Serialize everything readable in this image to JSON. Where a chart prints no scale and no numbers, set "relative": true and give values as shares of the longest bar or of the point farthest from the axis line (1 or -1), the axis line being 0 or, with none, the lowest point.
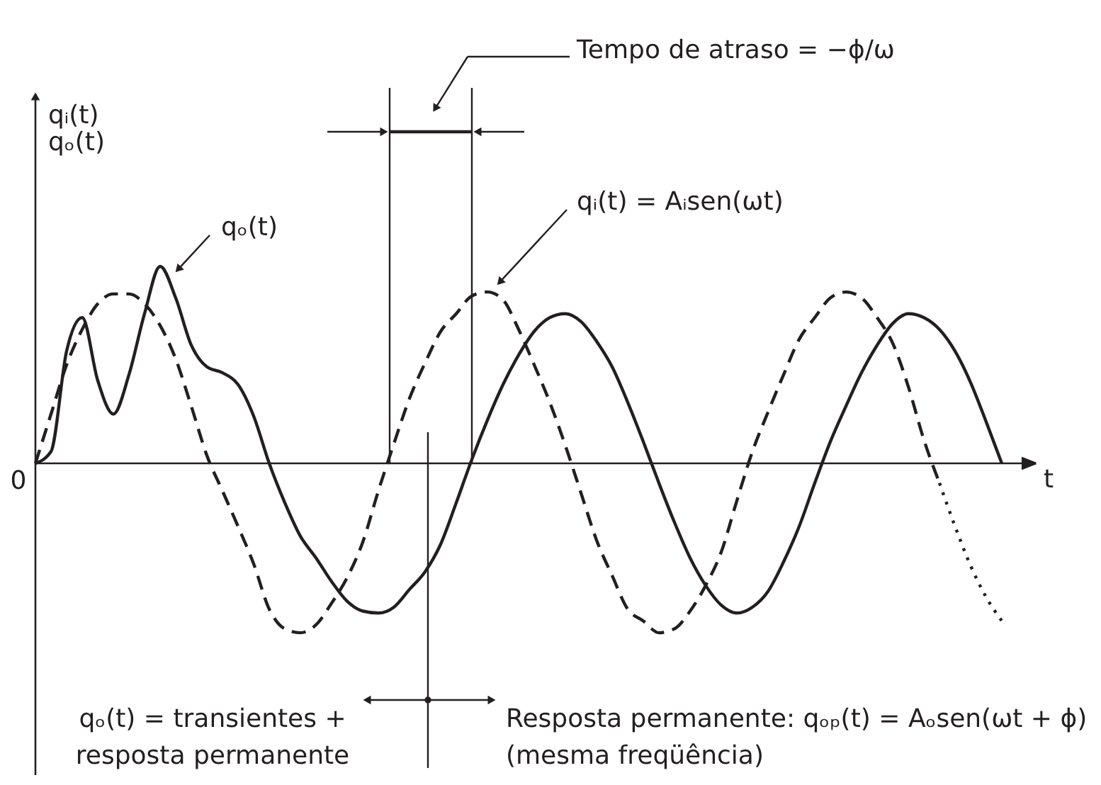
{
  "chart_data": {
    "type": "line",
    "relative": true,
    "xlabel": "t",
    "ylabel": "qᵢ(t)\nqₒ(t)",
    "categories": [
      null,
      null,
      null,
      null,
      null,
      null,
      null,
      null,
      null,
      null,
      null,
      null,
      null,
      null,
      null,
      null,
      null,
      null,
      null,
      null,
      null,
      null,
      null,
      null,
      null,
      null,
      null,
      null,
      null,
      null,
      null,
      null,
      null,
      null,
      null,
      null,
      null,
      null,
      null,
      null,
      null,
      null,
      null,
      null,
      null,
      null,
      null,
      null,
      null,
      null,
      null,
      null,
      null,
      null,
      null,
      null,
      null,
      null,
      null,
      null,
      null,
      null,
      null
    ],
    "series": [
      {
        "name": "qᵢ(t) = Aᵢsen(ωt)",
        "color": "#231f20",
        "line_style": "dashed",
        "values": [
          0,
          0.25,
          0.5,
          0.68,
          0.81,
          0.86,
          0.86,
          0.81,
          0.7,
          0.53,
          0.29,
          0.04,
          -0.14,
          -0.32,
          -0.51,
          -0.74,
          -0.84,
          -0.86,
          -0.82,
          -0.71,
          -0.58,
          -0.4,
          -0.14,
          0.1,
          0.33,
          0.51,
          0.67,
          0.76,
          0.85,
          0.87,
          0.83,
          0.68,
          0.5,
          0.31,
          0.09,
          -0.15,
          -0.39,
          -0.57,
          -0.74,
          -0.8,
          -0.86,
          -0.84,
          -0.75,
          -0.62,
          -0.45,
          -0.19,
          0.06,
          0.26,
          0.45,
          0.63,
          0.74,
          0.84,
          0.87,
          0.84,
          0.74,
          0.61,
          0.39,
          0.12,
          -0.1,
          null,
          null,
          null,
          null
        ]
      },
      {
        "name": "qₒ(t)",
        "color": "#231f20",
        "line_style": "solid",
        "values": [
          0,
          0.06,
          0.57,
          0.74,
          0.42,
          0.25,
          0.45,
          0.76,
          1,
          0.84,
          0.6,
          0.49,
          0.46,
          0.4,
          0.24,
          0,
          -0.2,
          -0.37,
          -0.48,
          -0.6,
          -0.7,
          -0.75,
          -0.76,
          -0.73,
          -0.64,
          -0.55,
          -0.41,
          -0.2,
          0.02,
          0.22,
          0.4,
          0.55,
          0.67,
          0.74,
          0.76,
          0.72,
          0.62,
          0.49,
          0.31,
          0.11,
          -0.1,
          -0.3,
          -0.48,
          -0.62,
          -0.72,
          -0.76,
          -0.73,
          -0.65,
          -0.5,
          -0.32,
          -0.1,
          0.11,
          0.29,
          0.46,
          0.6,
          0.71,
          0.76,
          0.74,
          0.68,
          0.57,
          0.41,
          0.21,
          0
        ]
      },
      {
        "color": "#231f20",
        "line_style": "dotted",
        "values": [
          null,
          null,
          null,
          null,
          null,
          null,
          null,
          null,
          null,
          null,
          null,
          null,
          null,
          null,
          null,
          null,
          null,
          null,
          null,
          null,
          null,
          null,
          null,
          null,
          null,
          null,
          null,
          null,
          null,
          null,
          null,
          null,
          null,
          null,
          null,
          null,
          null,
          null,
          null,
          null,
          null,
          null,
          null,
          null,
          null,
          null,
          null,
          null,
          null,
          null,
          null,
          null,
          null,
          null,
          null,
          null,
          null,
          null,
          -0.1,
          -0.32,
          -0.52,
          -0.68,
          -0.8
        ]
      }
    ],
    "annotations": [
      "Tempo de atraso = −ϕ/ω",
      "0",
      "qₒ(t) = transientes +\nresposta permanente",
      "Resposta permanente: qₒₚ(t) = Aₒsen(ωt + ϕ)\n(mesma freqüência)"
    ]
  }
}
